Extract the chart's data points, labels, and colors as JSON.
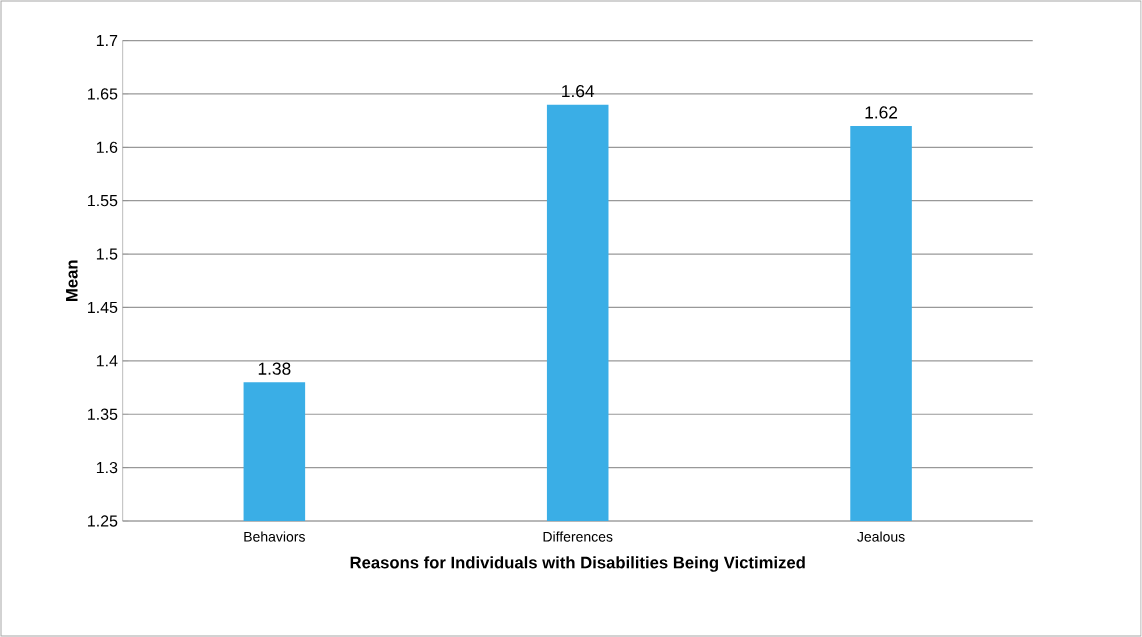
{
  "chart_data": {
    "type": "bar",
    "xlabel": "Reasons for Individuals with Disabilities Being Victimized",
    "ylabel": "Mean",
    "categories": [
      "Behaviors",
      "Differences",
      "Jealous"
    ],
    "values": [
      1.38,
      1.64,
      1.62
    ],
    "color": "#3aaee6",
    "ylim": [
      1.25,
      1.7
    ],
    "yticks": [
      1.25,
      1.3,
      1.35,
      1.4,
      1.45,
      1.5,
      1.55,
      1.6,
      1.65,
      1.7
    ],
    "grid": "y",
    "data_labels": true
  }
}
